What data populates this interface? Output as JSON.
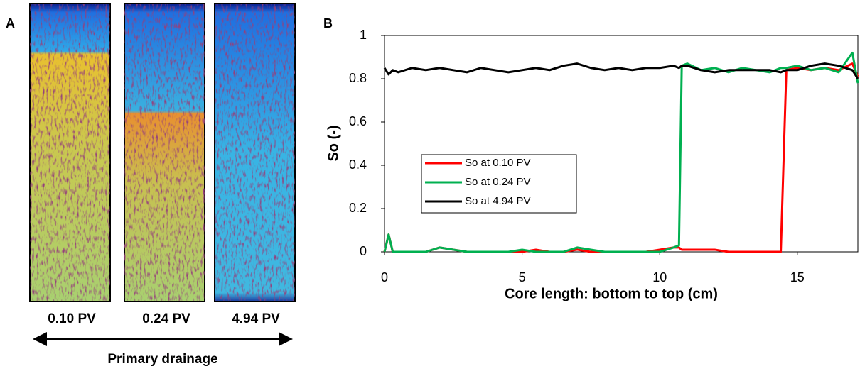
{
  "panel_a": {
    "label": "A",
    "images": [
      {
        "label": "0.10 PV"
      },
      {
        "label": "0.24 PV"
      },
      {
        "label": "4.94 PV"
      }
    ],
    "caption": "Primary drainage"
  },
  "chart_data": {
    "type": "line",
    "panel_label": "B",
    "x_label": "Core length: bottom to top (cm)",
    "y_label": "So (-)",
    "x": [
      0,
      0.15,
      0.3,
      0.5,
      1,
      1.5,
      2,
      2.5,
      3,
      3.5,
      4,
      4.5,
      5,
      5.5,
      6,
      6.5,
      7,
      7.5,
      8,
      8.5,
      9,
      9.5,
      10,
      10.5,
      10.7,
      10.8,
      11,
      11.5,
      12,
      12.5,
      13,
      13.5,
      14,
      14.4,
      14.6,
      15,
      15.5,
      16,
      16.5,
      17,
      17.2
    ],
    "series": [
      {
        "name": "So at 0.10 PV",
        "color": "#ff0000",
        "values": [
          0,
          0.08,
          0,
          0,
          0,
          0,
          0.02,
          0.01,
          0,
          0,
          0,
          0,
          0,
          0.01,
          0,
          0,
          0.01,
          0,
          0,
          0,
          0,
          0,
          0.01,
          0.02,
          0.02,
          0.01,
          0.01,
          0.01,
          0.01,
          0,
          0,
          0,
          0,
          0,
          0.84,
          0.85,
          0.84,
          0.85,
          0.84,
          0.87,
          0.81
        ]
      },
      {
        "name": "So at 0.24 PV",
        "color": "#00b050",
        "values": [
          0,
          0.08,
          0,
          0,
          0,
          0,
          0.02,
          0.01,
          0,
          0,
          0,
          0,
          0.01,
          0,
          0,
          0,
          0.02,
          0.01,
          0,
          0,
          0,
          0,
          0,
          0.02,
          0.03,
          0.86,
          0.87,
          0.84,
          0.85,
          0.83,
          0.85,
          0.84,
          0.83,
          0.85,
          0.85,
          0.86,
          0.84,
          0.85,
          0.83,
          0.92,
          0.78
        ]
      },
      {
        "name": "So at 4.94 PV",
        "color": "#000000",
        "values": [
          0.85,
          0.82,
          0.84,
          0.83,
          0.85,
          0.84,
          0.85,
          0.84,
          0.83,
          0.85,
          0.84,
          0.83,
          0.84,
          0.85,
          0.84,
          0.86,
          0.87,
          0.85,
          0.84,
          0.85,
          0.84,
          0.85,
          0.85,
          0.86,
          0.85,
          0.86,
          0.86,
          0.84,
          0.83,
          0.84,
          0.84,
          0.84,
          0.84,
          0.83,
          0.84,
          0.84,
          0.86,
          0.87,
          0.86,
          0.84,
          0.8
        ]
      }
    ],
    "xlim": [
      0,
      17.2
    ],
    "ylim": [
      0,
      1
    ],
    "xticks": [
      0,
      5,
      10,
      15
    ],
    "yticks": [
      0,
      0.2,
      0.4,
      0.6,
      0.8,
      1
    ],
    "grid": false,
    "legend": "left"
  }
}
